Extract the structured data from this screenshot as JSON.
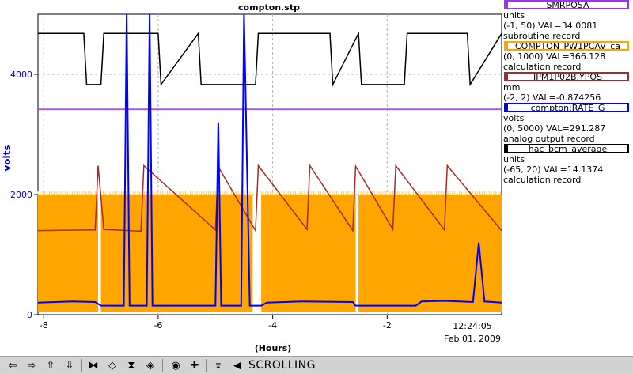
{
  "chart_data": {
    "type": "line",
    "title": "compton.stp",
    "xlabel": "(Hours)",
    "ylabel": "volts",
    "x_ticks": [
      "-8",
      "-6",
      "-4",
      "-2"
    ],
    "x_tick_values": [
      -8,
      -6,
      -4,
      -2
    ],
    "y_ticks": [
      "0",
      "2000",
      "4000"
    ],
    "y_tick_values": [
      0,
      2000,
      4000
    ],
    "xlim": [
      -8.1,
      0
    ],
    "ylim": [
      0,
      5000
    ],
    "end_time": "12:24:05",
    "end_date": "Feb 01, 2009",
    "grid": true,
    "legend_position": "right",
    "series": [
      {
        "name": "SMRPOSA",
        "color": "#9b30ff",
        "units": "units",
        "range": "(-1, 50) VAL=34.0081",
        "record": "subroutine record",
        "x": [
          -8.1,
          0
        ],
        "y": [
          3420,
          3420
        ]
      },
      {
        "name": "COMPTON_PW1PCAV_ca",
        "color": "#ffa500",
        "units": "",
        "range": "(0, 1000) VAL=366.128",
        "record": "calculation record",
        "band": [
          {
            "x0": -8.1,
            "x1": -7.05,
            "low": 50,
            "high": 2000
          },
          {
            "x0": -7.0,
            "x1": -4.35,
            "low": 50,
            "high": 2000
          },
          {
            "x0": -4.2,
            "x1": -2.55,
            "low": 50,
            "high": 2000
          },
          {
            "x0": -2.5,
            "x1": 0,
            "low": 50,
            "high": 2000
          }
        ]
      },
      {
        "name": "IPM1P02B.YPOS",
        "color": "#a52a2a",
        "units": "mm",
        "range": "(-2, 2) VAL=-0.874256",
        "record": "",
        "x": [
          -8.1,
          -7.1,
          -7.05,
          -6.95,
          -6.3,
          -6.25,
          -5.0,
          -4.95,
          -4.3,
          -4.25,
          -3.4,
          -3.35,
          -2.6,
          -2.55,
          -1.9,
          -1.85,
          -1.0,
          -0.95,
          0
        ],
        "y": [
          1400,
          1410,
          2480,
          1420,
          1390,
          2480,
          1410,
          2460,
          1400,
          2480,
          1420,
          2480,
          1400,
          2470,
          1420,
          2480,
          1410,
          2480,
          1400
        ]
      },
      {
        "name": "compton:RATE_G",
        "color": "#0000ff",
        "units": "volts",
        "range": "(0, 5000) VAL=291.287",
        "record": "analog output record",
        "x": [
          -8.1,
          -7.5,
          -7.1,
          -7.0,
          -6.6,
          -6.55,
          -6.5,
          -6.2,
          -6.15,
          -6.1,
          -5.7,
          -5.0,
          -4.95,
          -4.9,
          -4.55,
          -4.5,
          -4.4,
          -4.2,
          -4.1,
          -3.5,
          -2.6,
          -2.55,
          -2.3,
          -1.5,
          -1.4,
          -1.0,
          -0.5,
          -0.4,
          -0.3,
          0
        ],
        "y": [
          200,
          220,
          210,
          150,
          150,
          5000,
          150,
          150,
          5000,
          150,
          150,
          150,
          3200,
          150,
          150,
          5000,
          150,
          150,
          200,
          220,
          210,
          150,
          150,
          150,
          220,
          230,
          210,
          1200,
          220,
          200
        ]
      },
      {
        "name": "hac_bcm_average",
        "color": "#000000",
        "units": "units",
        "range": "(-65, 20) VAL=14.1374",
        "record": "calculation record",
        "x": [
          -8.1,
          -7.3,
          -7.25,
          -7.0,
          -6.95,
          -6.0,
          -5.95,
          -5.3,
          -5.25,
          -4.3,
          -4.25,
          -3.0,
          -2.95,
          -2.5,
          -2.45,
          -1.7,
          -1.65,
          -0.6,
          -0.55,
          0
        ],
        "y": [
          4680,
          4680,
          3830,
          3830,
          4680,
          4680,
          3830,
          4680,
          3830,
          3830,
          4680,
          4680,
          3830,
          4680,
          3830,
          3830,
          4680,
          4680,
          3830,
          4680
        ]
      }
    ]
  },
  "legend": [
    {
      "name": "SMRPOSA",
      "lines": [
        "units",
        "(-1, 50) VAL=34.0081",
        "subroutine record"
      ],
      "color": "#9b30ff"
    },
    {
      "name": "COMPTON_PW1PCAV_ca",
      "lines": [
        "(0, 1000) VAL=366.128",
        "calculation record"
      ],
      "color": "#ffa500"
    },
    {
      "name": "IPM1P02B.YPOS",
      "lines": [
        "mm",
        "(-2, 2) VAL=-0.874256"
      ],
      "color": "#a52a2a"
    },
    {
      "name": "compton:RATE_G",
      "lines": [
        "volts",
        "(0, 5000) VAL=291.287",
        "analog output record"
      ],
      "color": "#0000ff"
    },
    {
      "name": "hac_bcm_average",
      "lines": [
        "units",
        "(-65, 20) VAL=14.1374",
        "calculation record"
      ],
      "color": "#000000"
    }
  ],
  "toolbar": {
    "buttons": [
      {
        "name": "scroll-left-button",
        "icon": "arrow-left-icon",
        "glyph": "⇦"
      },
      {
        "name": "scroll-right-button",
        "icon": "arrow-right-icon",
        "glyph": "⇨"
      },
      {
        "name": "scroll-up-button",
        "icon": "arrow-up-icon",
        "glyph": "⇧"
      },
      {
        "name": "scroll-down-button",
        "icon": "arrow-down-icon",
        "glyph": "⇩"
      },
      {
        "name": "zoom-in-x-button",
        "icon": "zoom-in-x-icon",
        "glyph": "⧓"
      },
      {
        "name": "zoom-out-x-button",
        "icon": "zoom-out-x-icon",
        "glyph": "◇"
      },
      {
        "name": "zoom-in-y-button",
        "icon": "zoom-in-y-icon",
        "glyph": "⧗"
      },
      {
        "name": "zoom-out-y-button",
        "icon": "zoom-out-y-icon",
        "glyph": "◈"
      },
      {
        "name": "autoscale-button",
        "icon": "target-icon",
        "glyph": "◉"
      },
      {
        "name": "reset-button",
        "icon": "plus-icon",
        "glyph": "✚"
      },
      {
        "name": "zoom-box-button",
        "icon": "zoom-box-icon",
        "glyph": "⌆"
      },
      {
        "name": "pointer-button",
        "icon": "pointer-icon",
        "glyph": "◀"
      }
    ],
    "status": "SCROLLING"
  }
}
